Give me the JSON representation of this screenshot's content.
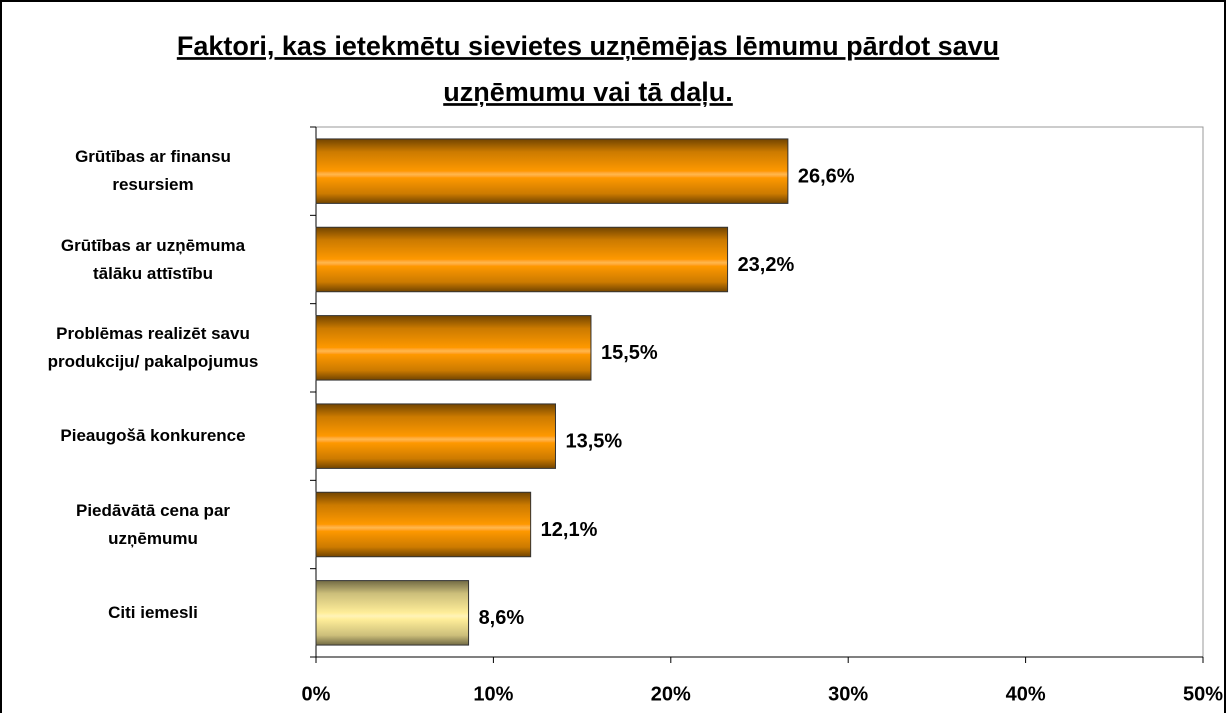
{
  "chart_data": {
    "type": "bar",
    "orientation": "horizontal",
    "title": [
      "Faktori, kas ietekmētu sievietes uzņēmējas lēmumu pārdot savu",
      "uzņēmumu vai tā daļu."
    ],
    "categories": [
      "Grūtības ar finansu\nresursiem",
      "Grūtības ar uzņēmuma\ntālāku attīstību",
      "Problēmas realizēt savu\nprodukciju/ pakalpojumus",
      "Pieaugošā konkurence",
      "Piedāvātā cena par\nuzņēmumu",
      "Citi iemesli"
    ],
    "values": [
      26.6,
      23.2,
      15.5,
      13.5,
      12.1,
      8.6
    ],
    "value_labels": [
      "26,6%",
      "23,2%",
      "15,5%",
      "13,5%",
      "12,1%",
      "8,6%"
    ],
    "colors": [
      "#ff9900",
      "#ff9900",
      "#ff9900",
      "#ff9900",
      "#ff9900",
      "#ffee99"
    ],
    "xlim": [
      0,
      50
    ],
    "xticks": [
      {
        "value": 0,
        "label": "0%"
      },
      {
        "value": 10,
        "label": "10%"
      },
      {
        "value": 20,
        "label": "20%"
      },
      {
        "value": 30,
        "label": "30%"
      },
      {
        "value": 40,
        "label": "40%"
      },
      {
        "value": 50,
        "label": "50%"
      }
    ],
    "grid": false
  }
}
